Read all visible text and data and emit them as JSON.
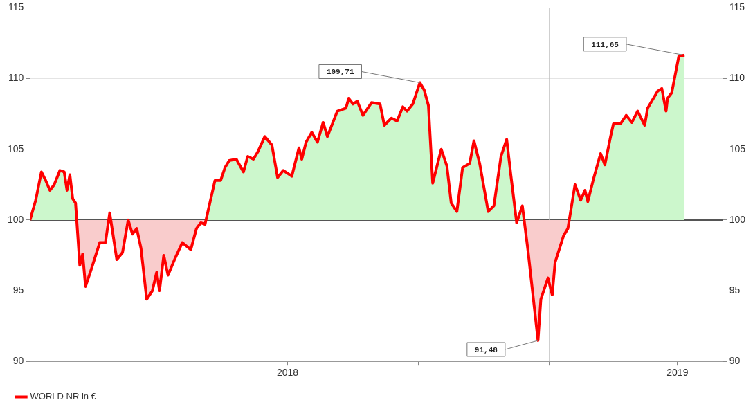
{
  "chart_data": {
    "type": "line",
    "x": [
      "2018-01-01",
      "2018-01-05",
      "2018-01-09",
      "2018-01-12",
      "2018-01-15",
      "2018-01-18",
      "2018-01-22",
      "2018-01-25",
      "2018-01-27",
      "2018-01-29",
      "2018-01-31",
      "2018-02-02",
      "2018-02-05",
      "2018-02-07",
      "2018-02-09",
      "2018-02-13",
      "2018-02-19",
      "2018-02-23",
      "2018-02-26",
      "2018-03-03",
      "2018-03-07",
      "2018-03-11",
      "2018-03-14",
      "2018-03-17",
      "2018-03-20",
      "2018-03-24",
      "2018-03-28",
      "2018-03-31",
      "2018-04-02",
      "2018-04-05",
      "2018-04-08",
      "2018-04-13",
      "2018-04-18",
      "2018-04-24",
      "2018-04-28",
      "2018-05-01",
      "2018-05-04",
      "2018-05-11",
      "2018-05-15",
      "2018-05-18",
      "2018-05-21",
      "2018-05-26",
      "2018-05-31",
      "2018-06-03",
      "2018-06-07",
      "2018-06-10",
      "2018-06-15",
      "2018-06-20",
      "2018-06-24",
      "2018-06-28",
      "2018-07-04",
      "2018-07-09",
      "2018-07-11",
      "2018-07-14",
      "2018-07-18",
      "2018-07-22",
      "2018-07-26",
      "2018-07-29",
      "2018-08-05",
      "2018-08-11",
      "2018-08-13",
      "2018-08-16",
      "2018-08-19",
      "2018-08-23",
      "2018-08-29",
      "2018-09-04",
      "2018-09-07",
      "2018-09-12",
      "2018-09-16",
      "2018-09-20",
      "2018-09-23",
      "2018-09-27",
      "2018-10-02",
      "2018-10-05",
      "2018-10-08",
      "2018-10-11",
      "2018-10-17",
      "2018-10-21",
      "2018-10-24",
      "2018-10-28",
      "2018-11-01",
      "2018-11-06",
      "2018-11-09",
      "2018-11-13",
      "2018-11-19",
      "2018-11-23",
      "2018-11-28",
      "2018-12-02",
      "2018-12-05",
      "2018-12-09",
      "2018-12-13",
      "2018-12-17",
      "2018-12-24",
      "2018-12-26",
      "2018-12-31",
      "2019-01-03",
      "2019-01-05",
      "2019-01-11",
      "2019-01-14",
      "2019-01-19",
      "2019-01-23",
      "2019-01-26",
      "2019-01-28",
      "2019-02-01",
      "2019-02-06",
      "2019-02-09",
      "2019-02-13",
      "2019-02-15",
      "2019-02-20",
      "2019-02-24",
      "2019-02-28",
      "2019-03-04",
      "2019-03-09",
      "2019-03-11",
      "2019-03-18",
      "2019-03-21",
      "2019-03-24",
      "2019-03-25",
      "2019-03-28",
      "2019-04-02",
      "2019-04-06"
    ],
    "series": [
      {
        "name": "WORLD NR in €",
        "color": "#ff0000",
        "values": [
          100.0,
          101.4,
          103.4,
          102.8,
          102.1,
          102.5,
          103.5,
          103.4,
          102.1,
          103.2,
          101.5,
          101.2,
          96.8,
          97.6,
          95.3,
          96.5,
          98.4,
          98.4,
          100.5,
          97.2,
          97.7,
          100.0,
          99.0,
          99.4,
          98.0,
          94.4,
          95.0,
          96.3,
          95.0,
          97.5,
          96.1,
          97.3,
          98.4,
          97.9,
          99.4,
          99.8,
          99.7,
          102.8,
          102.8,
          103.7,
          104.2,
          104.3,
          103.4,
          104.5,
          104.3,
          104.8,
          105.9,
          105.3,
          103.0,
          103.5,
          103.1,
          105.1,
          104.3,
          105.5,
          106.2,
          105.5,
          106.9,
          105.9,
          107.7,
          107.9,
          108.6,
          108.2,
          108.4,
          107.4,
          108.3,
          108.2,
          106.7,
          107.2,
          107.0,
          108.0,
          107.7,
          108.2,
          109.71,
          109.2,
          108.1,
          102.6,
          105.0,
          103.8,
          101.2,
          100.6,
          103.7,
          104.0,
          105.6,
          104.0,
          100.6,
          101.0,
          104.5,
          105.7,
          103.1,
          99.8,
          101.0,
          97.8,
          91.48,
          94.4,
          95.9,
          94.7,
          97.0,
          98.9,
          99.4,
          102.5,
          101.4,
          102.1,
          101.3,
          102.9,
          104.7,
          103.9,
          105.9,
          106.8,
          106.8,
          107.4,
          106.9,
          107.7,
          106.7,
          107.9,
          109.1,
          109.3,
          107.7,
          108.6,
          109.0,
          111.6,
          111.65
        ]
      }
    ],
    "xlim": [
      "2018-01-01",
      "2019-05-03"
    ],
    "xticks": [
      {
        "value": "2018-01-01",
        "label": null
      },
      {
        "value": "2018-04-01",
        "label": null
      },
      {
        "value": "2018-07-01",
        "label": "2018"
      },
      {
        "value": "2018-10-01",
        "label": null
      },
      {
        "value": "2019-01-01",
        "label": null
      },
      {
        "value": "2019-04-01",
        "label": "2019"
      }
    ],
    "ylim": [
      90,
      115
    ],
    "yticks": [
      90,
      95,
      100,
      105,
      110,
      115
    ],
    "y2lim": [
      90,
      115
    ],
    "y2ticks": [
      90,
      95,
      100,
      105,
      110,
      115
    ],
    "ref_lines": [
      {
        "axis": "y",
        "value": 100,
        "color": "#555555"
      },
      {
        "axis": "x",
        "value": "2019-01-01",
        "color": "#bbbbbb"
      }
    ],
    "annotations": [
      {
        "text": "109,71",
        "x": "2018-10-02",
        "y": 109.71
      },
      {
        "text": "91,48",
        "x": "2018-12-24",
        "y": 91.48
      },
      {
        "text": "111,65",
        "x": "2019-04-06",
        "y": 111.65
      }
    ],
    "grid": "y",
    "legend": "bottom left"
  }
}
